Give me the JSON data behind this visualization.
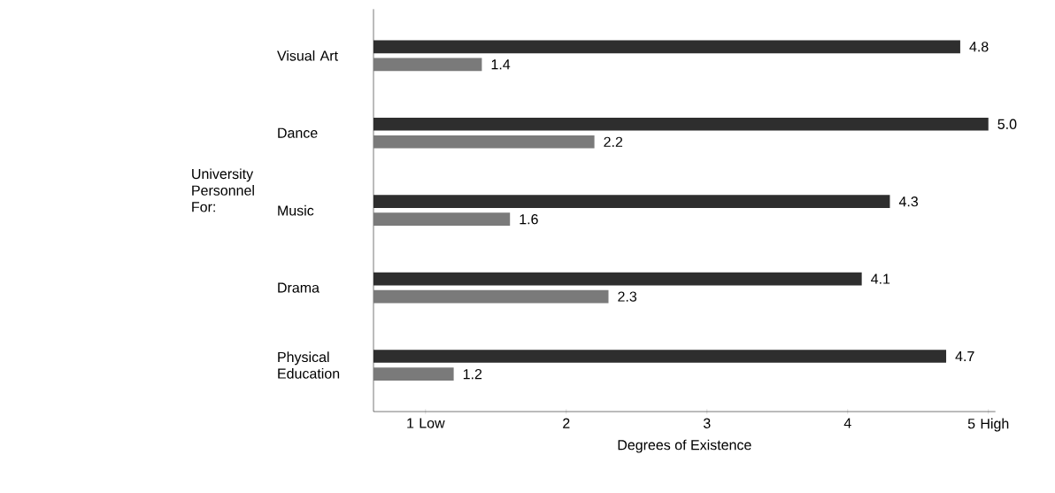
{
  "chart_data": {
    "type": "bar",
    "orientation": "horizontal",
    "xlabel": "Degrees of Existence",
    "ylabel": "University Personnel For:",
    "categories": [
      "Visual Art",
      "Dance",
      "Music",
      "Drama",
      "Physical Education"
    ],
    "series": [
      {
        "color": "#2e2e2e",
        "values": [
          4.8,
          5.0,
          4.3,
          4.1,
          4.7
        ],
        "value_labels": [
          "4.8",
          "5.0",
          "4.3",
          "4.1",
          "4.7"
        ]
      },
      {
        "color": "#7a7a7a",
        "values": [
          1.4,
          2.2,
          1.6,
          2.3,
          1.2
        ],
        "value_labels": [
          "1.4",
          "2.2",
          "1.6",
          "2.3",
          "1.2"
        ]
      }
    ],
    "xlim": [
      0.63,
      5.05
    ],
    "xticks": [
      {
        "value": 1,
        "label": "1 Low"
      },
      2,
      3,
      4,
      {
        "value": 5,
        "label": "5 High"
      }
    ],
    "grid": false
  }
}
